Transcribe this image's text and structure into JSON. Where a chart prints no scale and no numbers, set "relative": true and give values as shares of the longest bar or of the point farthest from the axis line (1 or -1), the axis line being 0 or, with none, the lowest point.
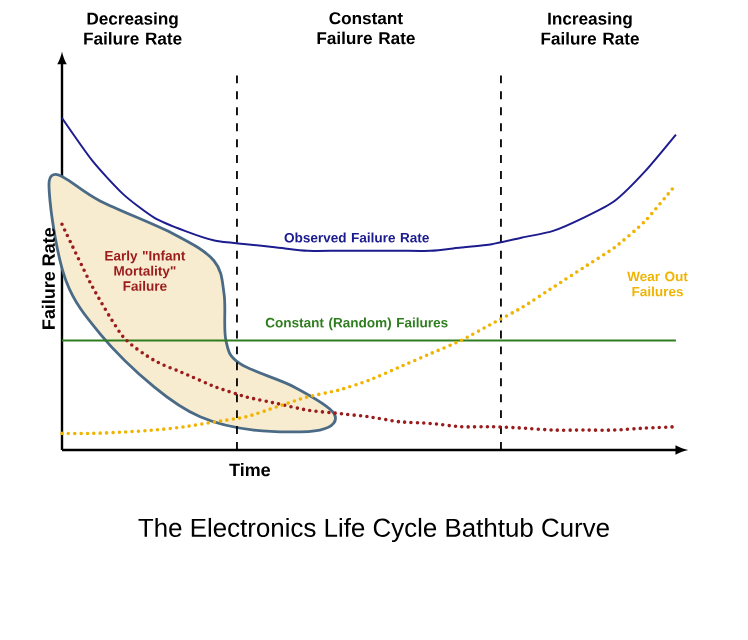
{
  "chart_data": {
    "type": "line",
    "title": "The Electronics Life Cycle Bathtub Curve",
    "xlabel": "Time",
    "ylabel": "Failure Rate",
    "relative": true,
    "legend": false,
    "marker": "none",
    "annotations": [
      "Decreasing Failure Rate",
      "Constant Failure Rate",
      "Increasing Failure Rate"
    ],
    "categories": [
      null,
      null,
      null,
      null,
      null,
      null,
      null,
      null,
      null,
      null,
      null,
      null,
      null,
      null,
      null,
      null,
      null,
      null,
      null,
      null,
      null
    ],
    "series": [
      {
        "name": "Observed Failure Rate",
        "color": "#1c1c8f",
        "line_style": "solid",
        "values": [
          1.0,
          0.87,
          0.77,
          0.7,
          0.66,
          0.63,
          0.62,
          0.61,
          0.6,
          0.6,
          0.6,
          0.6,
          0.6,
          0.61,
          0.62,
          0.64,
          0.66,
          0.7,
          0.75,
          0.84,
          0.95
        ]
      },
      {
        "name": "Constant (Random) Failures",
        "color": "#2e7d1e",
        "line_style": "solid",
        "values": [
          0.33,
          0.33,
          0.33,
          0.33,
          0.33,
          0.33,
          0.33,
          0.33,
          0.33,
          0.33,
          0.33,
          0.33,
          0.33,
          0.33,
          0.33,
          0.33,
          0.33,
          0.33,
          0.33,
          0.33,
          0.33
        ]
      },
      {
        "name": "Early \"Infant Mortality\" Failure",
        "color": "#9b1c1c",
        "line_style": "dotted",
        "values": [
          0.68,
          0.49,
          0.34,
          0.27,
          0.23,
          0.19,
          0.16,
          0.14,
          0.12,
          0.11,
          0.1,
          0.085,
          0.08,
          0.07,
          0.07,
          0.066,
          0.06,
          0.06,
          0.06,
          0.066,
          0.07
        ]
      },
      {
        "name": "Wear Out Failures",
        "color": "#f0b400",
        "line_style": "dotted",
        "values": [
          0.05,
          0.05,
          0.054,
          0.06,
          0.07,
          0.085,
          0.1,
          0.13,
          0.16,
          0.18,
          0.21,
          0.25,
          0.29,
          0.33,
          0.38,
          0.43,
          0.49,
          0.55,
          0.61,
          0.69,
          0.8
        ]
      }
    ]
  }
}
